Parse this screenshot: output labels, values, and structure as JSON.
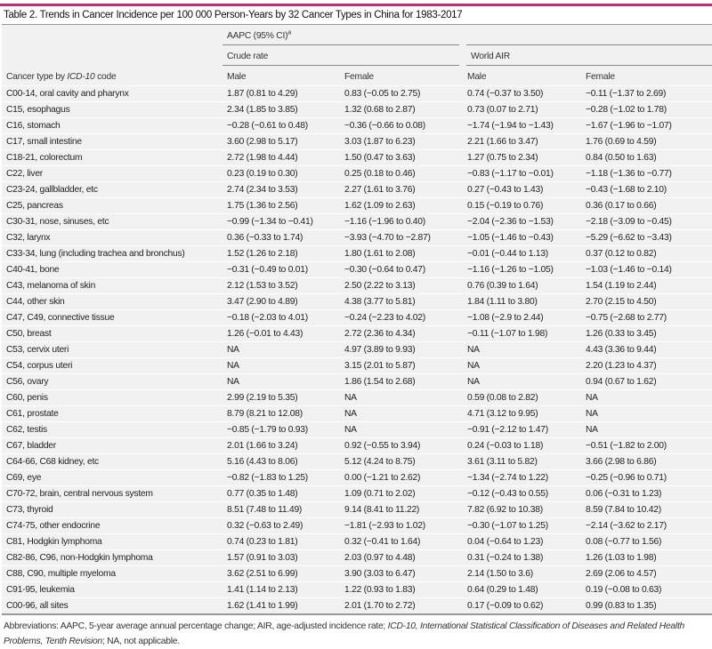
{
  "title": "Table 2. Trends in Cancer Incidence per 100 000 Person-Years by 32 Cancer Types in China for 1983-2017",
  "accent_color": "#c2306b",
  "header": {
    "group": "AAPC (95% CI)",
    "group_sup": "a",
    "crude": "Crude rate",
    "world": "World AIR",
    "col0_prefix": "Cancer type by ",
    "col0_italic": "ICD-10",
    "col0_suffix": " code",
    "male": "Male",
    "female": "Female"
  },
  "rows": [
    [
      "C00-14, oral cavity and pharynx",
      "1.87 (0.81 to 4.29)",
      "0.83 (−0.05 to 2.75)",
      "0.74 (−0.37 to 3.50)",
      "−0.11 (−1.37 to 2.69)"
    ],
    [
      "C15, esophagus",
      "2.34 (1.85 to 3.85)",
      "1.32 (0.68 to 2.87)",
      "0.73 (0.07 to 2.71)",
      "−0.28 (−1.02 to 1.78)"
    ],
    [
      "C16, stomach",
      "−0.28 (−0.61 to 0.48)",
      "−0.36 (−0.66 to 0.08)",
      "−1.74 (−1.94 to −1.43)",
      "−1.67 (−1.96 to −1.07)"
    ],
    [
      "C17, small intestine",
      "3.60 (2.98 to 5.17)",
      "3.03 (1.87 to 6.23)",
      "2.21 (1.66 to 3.47)",
      "1.76 (0.69 to 4.59)"
    ],
    [
      "C18-21, colorectum",
      "2.72 (1.98 to 4.44)",
      "1.50 (0.47 to 3.63)",
      "1.27 (0.75 to 2.34)",
      "0.84 (0.50 to 1.63)"
    ],
    [
      "C22, liver",
      "0.23 (0.19 to 0.30)",
      "0.25 (0.18 to 0.46)",
      "−0.83 (−1.17 to −0.01)",
      "−1.18 (−1.36 to −0.77)"
    ],
    [
      "C23-24, gallbladder, etc",
      "2.74 (2.34 to 3.53)",
      "2.27 (1.61 to 3.76)",
      "0.27 (−0.43 to 1.43)",
      "−0.43 (−1.68 to 2.10)"
    ],
    [
      "C25, pancreas",
      "1.75 (1.36 to 2.56)",
      "1.62 (1.09 to 2.63)",
      "0.15 (−0.19 to 0.76)",
      "0.36 (0.17 to 0.66)"
    ],
    [
      "C30-31, nose, sinuses, etc",
      "−0.99 (−1.34 to −0.41)",
      "−1.16 (−1.96 to 0.40)",
      "−2.04 (−2.36 to −1.53)",
      "−2.18 (−3.09 to −0.45)"
    ],
    [
      "C32, larynx",
      "0.36 (−0.33 to 1.74)",
      "−3.93 (−4.70 to −2.87)",
      "−1.05 (−1.46 to −0.43)",
      "−5.29 (−6.62 to −3.43)"
    ],
    [
      "C33-34, lung (including trachea and bronchus)",
      "1.52 (1.26 to 2.18)",
      "1.80 (1.61 to 2.08)",
      "−0.01 (−0.44 to 1.13)",
      "0.37 (0.12 to 0.82)"
    ],
    [
      "C40-41, bone",
      "−0.31 (−0.49 to 0.01)",
      "−0.30 (−0.64 to 0.47)",
      "−1.16 (−1.26 to −1.05)",
      "−1.03 (−1.46 to −0.14)"
    ],
    [
      "C43, melanoma of skin",
      "2.12 (1.53 to 3.52)",
      "2.50 (2.22 to 3.13)",
      "0.76 (0.39 to 1.64)",
      "1.54 (1.19 to 2.44)"
    ],
    [
      "C44, other skin",
      "3.47 (2.90 to 4.89)",
      "4.38 (3.77 to 5.81)",
      "1.84 (1.11 to 3.80)",
      "2.70 (2.15 to 4.50)"
    ],
    [
      "C47, C49, connective tissue",
      "−0.18 (−2.03 to 4.01)",
      "−0.24 (−2.23 to 4.02)",
      "−1.08 (−2.9 to 2.44)",
      "−0.75 (−2.68 to 2.77)"
    ],
    [
      "C50, breast",
      "1.26 (−0.01 to 4.43)",
      "2.72 (2.36 to 4.34)",
      "−0.11 (−1.07 to 1.98)",
      "1.26 (0.33 to 3.45)"
    ],
    [
      "C53, cervix uteri",
      "NA",
      "4.97 (3.89 to 9.93)",
      "NA",
      "4.43 (3.36 to 9.44)"
    ],
    [
      "C54, corpus uteri",
      "NA",
      "3.15 (2.01 to 5.87)",
      "NA",
      "2.20 (1.23 to 4.37)"
    ],
    [
      "C56, ovary",
      "NA",
      "1.86 (1.54 to 2.68)",
      "NA",
      "0.94 (0.67 to 1.62)"
    ],
    [
      "C60, penis",
      "2.99 (2.19 to 5.35)",
      "NA",
      "0.59 (0.08 to 2.82)",
      "NA"
    ],
    [
      "C61, prostate",
      "8.79 (8.21 to 12.08)",
      "NA",
      "4.71 (3.12 to 9.95)",
      "NA"
    ],
    [
      "C62, testis",
      "−0.85 (−1.79 to 0.93)",
      "NA",
      "−0.91 (−2.12 to 1.47)",
      "NA"
    ],
    [
      "C67, bladder",
      "2.01 (1.66 to 3.24)",
      "0.92 (−0.55 to 3.94)",
      "0.24 (−0.03 to 1.18)",
      "−0.51 (−1.82 to 2.00)"
    ],
    [
      "C64-66, C68 kidney, etc",
      "5.16 (4.43 to 8.06)",
      "5.12 (4.24 to 8.75)",
      "3.61 (3.11 to 5.82)",
      "3.66 (2.98 to 6.86)"
    ],
    [
      "C69, eye",
      "−0.82 (−1.83 to 1.25)",
      "0.00 (−1.21 to 2.62)",
      "−1.34 (−2.74 to 1.22)",
      "−0.25 (−0.96 to 0.71)"
    ],
    [
      "C70-72, brain, central nervous system",
      "0.77 (0.35 to 1.48)",
      "1.09 (0.71 to 2.02)",
      "−0.12 (−0.43 to 0.55)",
      "0.06 (−0.31 to 1.23)"
    ],
    [
      "C73, thyroid",
      "8.51 (7.48 to 11.49)",
      "9.14 (8.41 to 11.22)",
      "7.82 (6.92 to 10.38)",
      "8.59 (7.84 to 10.42)"
    ],
    [
      "C74-75, other endocrine",
      "0.32 (−0.63 to 2.49)",
      "−1.81 (−2.93 to 1.02)",
      "−0.30 (−1.07 to 1.25)",
      "−2.14 (−3.62 to 2.17)"
    ],
    [
      "C81, Hodgkin lymphoma",
      "0.74 (0.23 to 1.81)",
      "0.32 (−0.41 to 1.64)",
      "0.04 (−0.64 to 1.23)",
      "0.08 (−0.77 to 1.56)"
    ],
    [
      "C82-86, C96, non-Hodgkin lymphoma",
      "1.57 (0.91 to 3.03)",
      "2.03 (0.97 to 4.48)",
      "0.31 (−0.24 to 1.38)",
      "1.26 (1.03 to 1.98)"
    ],
    [
      "C88, C90, multiple myeloma",
      "3.62 (2.51 to 6.99)",
      "3.90 (3.03 to 6.47)",
      "2.14 (1.50 to 3.6)",
      "2.69 (2.06 to 4.57)"
    ],
    [
      "C91-95, leukemia",
      "1.41 (1.14 to 2.13)",
      "1.22 (0.93 to 1.83)",
      "0.64 (0.29 to 1.48)",
      "0.19 (−0.08 to 0.63)"
    ],
    [
      "C00-96, all sites",
      "1.62 (1.41 to 1.99)",
      "2.01 (1.70 to 2.72)",
      "0.17 (−0.09 to 0.62)",
      "0.99 (0.83 to 1.35)"
    ]
  ],
  "footer": {
    "part1": "Abbreviations: AAPC, 5-year average annual percentage change; AIR, age-adjusted incidence rate; ",
    "italic": "ICD-10, International Statistical Classification of Diseases and Related Health Problems, Tenth Revision",
    "part2": "; NA, not applicable."
  }
}
